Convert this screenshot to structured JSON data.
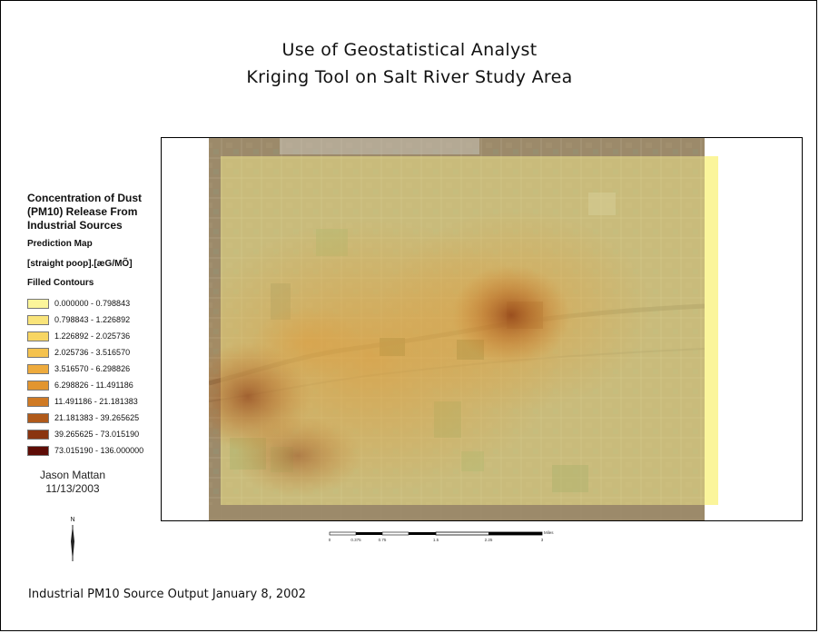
{
  "title": {
    "line1": "Use of Geostatistical Analyst",
    "line2": "Kriging Tool on Salt River Study Area"
  },
  "legend": {
    "heading": [
      "Concentration of Dust",
      "(PM10) Release From",
      "Industrial Sources"
    ],
    "prediction_label": "Prediction Map",
    "field_label": "[straight poop].[æG/MÕ]",
    "contours_label": "Filled Contours",
    "classes": [
      {
        "label": "0.000000 - 0.798843",
        "color": "#fbf59a"
      },
      {
        "label": "0.798843 - 1.226892",
        "color": "#f9e47a"
      },
      {
        "label": "1.226892 - 2.025736",
        "color": "#f7d562"
      },
      {
        "label": "2.025736 - 3.516570",
        "color": "#f4c24e"
      },
      {
        "label": "3.516570 - 6.298826",
        "color": "#eeab3d"
      },
      {
        "label": "6.298826 - 11.491186",
        "color": "#e2952f"
      },
      {
        "label": "11.491186 - 21.181383",
        "color": "#cf7a24"
      },
      {
        "label": "21.181383 - 39.265625",
        "color": "#b05a1a"
      },
      {
        "label": "39.265625 - 73.015190",
        "color": "#8a3510"
      },
      {
        "label": "73.015190 - 136.000000",
        "color": "#5e0c06"
      }
    ]
  },
  "author": {
    "name": "Jason Mattan",
    "date": "11/13/2003"
  },
  "north_arrow": {
    "label": "N"
  },
  "scale_bar": {
    "ticks": [
      "0",
      "0.375",
      "0.75",
      "1.5",
      "2.25",
      "3"
    ],
    "unit": "Miles"
  },
  "footer": "Industrial PM10 Source Output January 8, 2002",
  "colors": {
    "imagery_base": "#9c8a6a",
    "overlay_light": "#f6ec8c"
  }
}
